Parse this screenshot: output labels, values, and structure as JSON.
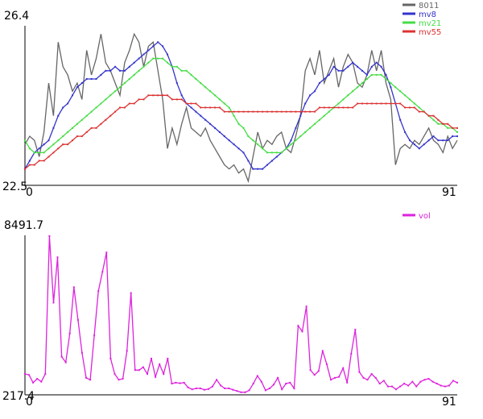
{
  "chart_data": [
    {
      "type": "line",
      "title": "",
      "ylim": [
        22.5,
        26.4
      ],
      "xlim": [
        0,
        91
      ],
      "y_tick_labels": [
        "26.4",
        "22.5"
      ],
      "x_tick_labels": [
        "0",
        "91"
      ],
      "grid": false,
      "legend_position": "top-right",
      "series": [
        {
          "name": "8011",
          "color": "#666666",
          "marker": false,
          "values": [
            23.5,
            23.7,
            23.6,
            23.2,
            23.8,
            25.0,
            24.2,
            26.0,
            25.4,
            25.2,
            24.8,
            25.0,
            24.6,
            25.8,
            25.2,
            25.6,
            26.2,
            25.5,
            25.3,
            25.0,
            24.7,
            25.5,
            25.8,
            26.2,
            26.0,
            25.4,
            25.9,
            26.0,
            25.3,
            24.6,
            23.4,
            23.9,
            23.5,
            24.0,
            24.4,
            23.9,
            23.8,
            23.7,
            23.9,
            23.6,
            23.4,
            23.2,
            23.0,
            22.9,
            23.0,
            22.8,
            22.9,
            22.6,
            23.2,
            23.8,
            23.4,
            23.6,
            23.5,
            23.7,
            23.8,
            23.4,
            23.3,
            23.7,
            24.2,
            25.3,
            25.6,
            25.2,
            25.8,
            25.0,
            25.3,
            25.6,
            24.9,
            25.4,
            25.7,
            25.5,
            25.0,
            24.9,
            25.2,
            25.8,
            25.3,
            25.8,
            25.0,
            24.6,
            23.0,
            23.4,
            23.5,
            23.4,
            23.6,
            23.5,
            23.7,
            23.9,
            23.6,
            23.5,
            23.3,
            23.7,
            23.4,
            23.6
          ]
        },
        {
          "name": "mv8",
          "color": "#3333cc",
          "marker": true,
          "values": [
            22.9,
            23.1,
            23.3,
            23.4,
            23.5,
            23.6,
            23.9,
            24.2,
            24.4,
            24.5,
            24.7,
            24.9,
            25.0,
            25.1,
            25.1,
            25.1,
            25.2,
            25.3,
            25.3,
            25.4,
            25.3,
            25.3,
            25.4,
            25.5,
            25.6,
            25.7,
            25.8,
            25.9,
            26.0,
            25.9,
            25.7,
            25.4,
            25.0,
            24.7,
            24.5,
            24.4,
            24.3,
            24.2,
            24.1,
            24.0,
            23.9,
            23.8,
            23.7,
            23.6,
            23.5,
            23.4,
            23.3,
            23.1,
            22.9,
            22.9,
            22.9,
            23.0,
            23.1,
            23.2,
            23.3,
            23.4,
            23.6,
            23.9,
            24.2,
            24.5,
            24.7,
            24.8,
            25.0,
            25.1,
            25.2,
            25.4,
            25.3,
            25.3,
            25.4,
            25.5,
            25.4,
            25.3,
            25.2,
            25.4,
            25.5,
            25.4,
            25.2,
            24.9,
            24.5,
            24.1,
            23.8,
            23.6,
            23.5,
            23.4,
            23.5,
            23.6,
            23.7,
            23.6,
            23.6,
            23.6,
            23.7,
            23.7
          ]
        },
        {
          "name": "mv21",
          "color": "#44dd44",
          "marker": true,
          "values": [
            23.6,
            23.4,
            23.3,
            23.3,
            23.3,
            23.4,
            23.5,
            23.6,
            23.7,
            23.8,
            23.9,
            24.0,
            24.1,
            24.2,
            24.3,
            24.4,
            24.5,
            24.6,
            24.7,
            24.8,
            24.9,
            25.0,
            25.1,
            25.2,
            25.3,
            25.4,
            25.5,
            25.6,
            25.6,
            25.6,
            25.5,
            25.4,
            25.4,
            25.3,
            25.3,
            25.2,
            25.1,
            25.0,
            24.9,
            24.8,
            24.7,
            24.6,
            24.5,
            24.4,
            24.2,
            24.0,
            23.9,
            23.7,
            23.6,
            23.5,
            23.4,
            23.3,
            23.3,
            23.3,
            23.3,
            23.4,
            23.5,
            23.6,
            23.7,
            23.8,
            23.9,
            24.0,
            24.1,
            24.2,
            24.3,
            24.4,
            24.5,
            24.6,
            24.7,
            24.8,
            24.9,
            25.0,
            25.1,
            25.2,
            25.2,
            25.2,
            25.1,
            25.0,
            24.9,
            24.8,
            24.7,
            24.6,
            24.5,
            24.4,
            24.3,
            24.2,
            24.1,
            24.0,
            24.0,
            23.9,
            23.9,
            23.8
          ]
        },
        {
          "name": "mv55",
          "color": "#dd3333",
          "marker": true,
          "values": [
            22.9,
            23.0,
            23.0,
            23.1,
            23.1,
            23.2,
            23.3,
            23.4,
            23.5,
            23.5,
            23.6,
            23.7,
            23.7,
            23.8,
            23.9,
            23.9,
            24.0,
            24.1,
            24.2,
            24.3,
            24.4,
            24.4,
            24.5,
            24.5,
            24.6,
            24.6,
            24.7,
            24.7,
            24.7,
            24.7,
            24.7,
            24.6,
            24.6,
            24.6,
            24.5,
            24.5,
            24.5,
            24.4,
            24.4,
            24.4,
            24.4,
            24.4,
            24.3,
            24.3,
            24.3,
            24.3,
            24.3,
            24.3,
            24.3,
            24.3,
            24.3,
            24.3,
            24.3,
            24.3,
            24.3,
            24.3,
            24.3,
            24.3,
            24.3,
            24.3,
            24.3,
            24.3,
            24.4,
            24.4,
            24.4,
            24.4,
            24.4,
            24.4,
            24.4,
            24.4,
            24.5,
            24.5,
            24.5,
            24.5,
            24.5,
            24.5,
            24.5,
            24.5,
            24.5,
            24.5,
            24.4,
            24.4,
            24.4,
            24.3,
            24.3,
            24.2,
            24.2,
            24.1,
            24.0,
            24.0,
            23.9,
            23.9
          ]
        }
      ]
    },
    {
      "type": "line",
      "title": "",
      "ylim": [
        217.4,
        8491.7
      ],
      "xlim": [
        0,
        91
      ],
      "y_tick_labels": [
        "8491.7",
        "217.4"
      ],
      "x_tick_labels": [
        "0",
        "91"
      ],
      "grid": false,
      "legend_position": "top-right",
      "series": [
        {
          "name": "vol",
          "color": "#dd22dd",
          "marker": true,
          "values": [
            1300,
            1250,
            850,
            1050,
            900,
            1300,
            8450,
            5000,
            7350,
            2200,
            1900,
            3400,
            5800,
            4100,
            2400,
            1100,
            1000,
            3300,
            5600,
            6600,
            7600,
            2100,
            1300,
            1000,
            1050,
            2500,
            5500,
            1500,
            1500,
            1650,
            1300,
            2100,
            1150,
            1800,
            1300,
            2100,
            800,
            850,
            820,
            850,
            600,
            500,
            550,
            550,
            480,
            520,
            650,
            1000,
            700,
            550,
            550,
            480,
            420,
            350,
            350,
            450,
            800,
            1200,
            900,
            450,
            550,
            750,
            1100,
            500,
            800,
            850,
            550,
            3800,
            3500,
            4800,
            1500,
            1250,
            1450,
            2500,
            1800,
            1000,
            1100,
            1150,
            1600,
            850,
            2350,
            3600,
            1400,
            1100,
            1000,
            1300,
            1100,
            800,
            950,
            650,
            650,
            500,
            650,
            800,
            700,
            900,
            650,
            900,
            1000,
            1050,
            900,
            800,
            700,
            650,
            700,
            950,
            850
          ]
        }
      ]
    }
  ]
}
